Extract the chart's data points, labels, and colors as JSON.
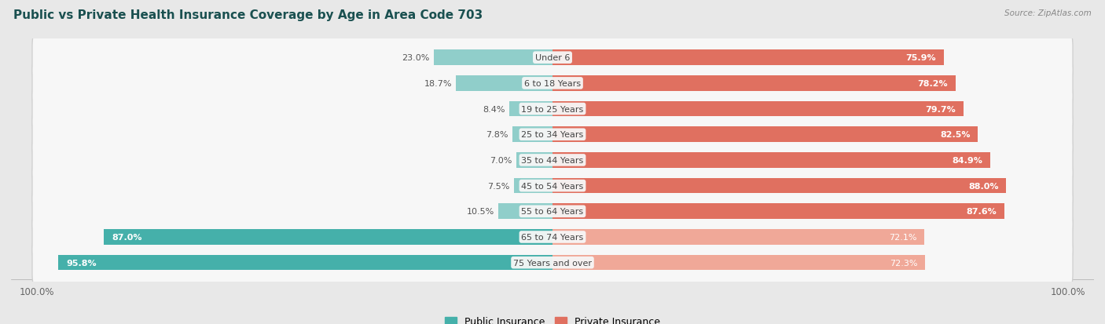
{
  "title": "Public vs Private Health Insurance Coverage by Age in Area Code 703",
  "source": "Source: ZipAtlas.com",
  "categories": [
    "Under 6",
    "6 to 18 Years",
    "19 to 25 Years",
    "25 to 34 Years",
    "35 to 44 Years",
    "45 to 54 Years",
    "55 to 64 Years",
    "65 to 74 Years",
    "75 Years and over"
  ],
  "public_values": [
    23.0,
    18.7,
    8.4,
    7.8,
    7.0,
    7.5,
    10.5,
    87.0,
    95.8
  ],
  "private_values": [
    75.9,
    78.2,
    79.7,
    82.5,
    84.9,
    88.0,
    87.6,
    72.1,
    72.3
  ],
  "public_color_solid": "#45b0aa",
  "public_color_light": "#90ceca",
  "private_color_solid": "#e07060",
  "private_color_light": "#f0a898",
  "bg_color": "#e8e8e8",
  "bar_bg_color": "#f7f7f7",
  "row_shadow_color": "#d0d0d0",
  "title_color": "#1a5050",
  "source_color": "#888888",
  "axis_label_color": "#666666",
  "center_label_color": "#444444",
  "value_text_color_inside": "#ffffff",
  "value_text_color_outside": "#555555",
  "legend_labels": [
    "Public Insurance",
    "Private Insurance"
  ],
  "public_threshold": 50,
  "private_threshold": 75,
  "scale": 100
}
